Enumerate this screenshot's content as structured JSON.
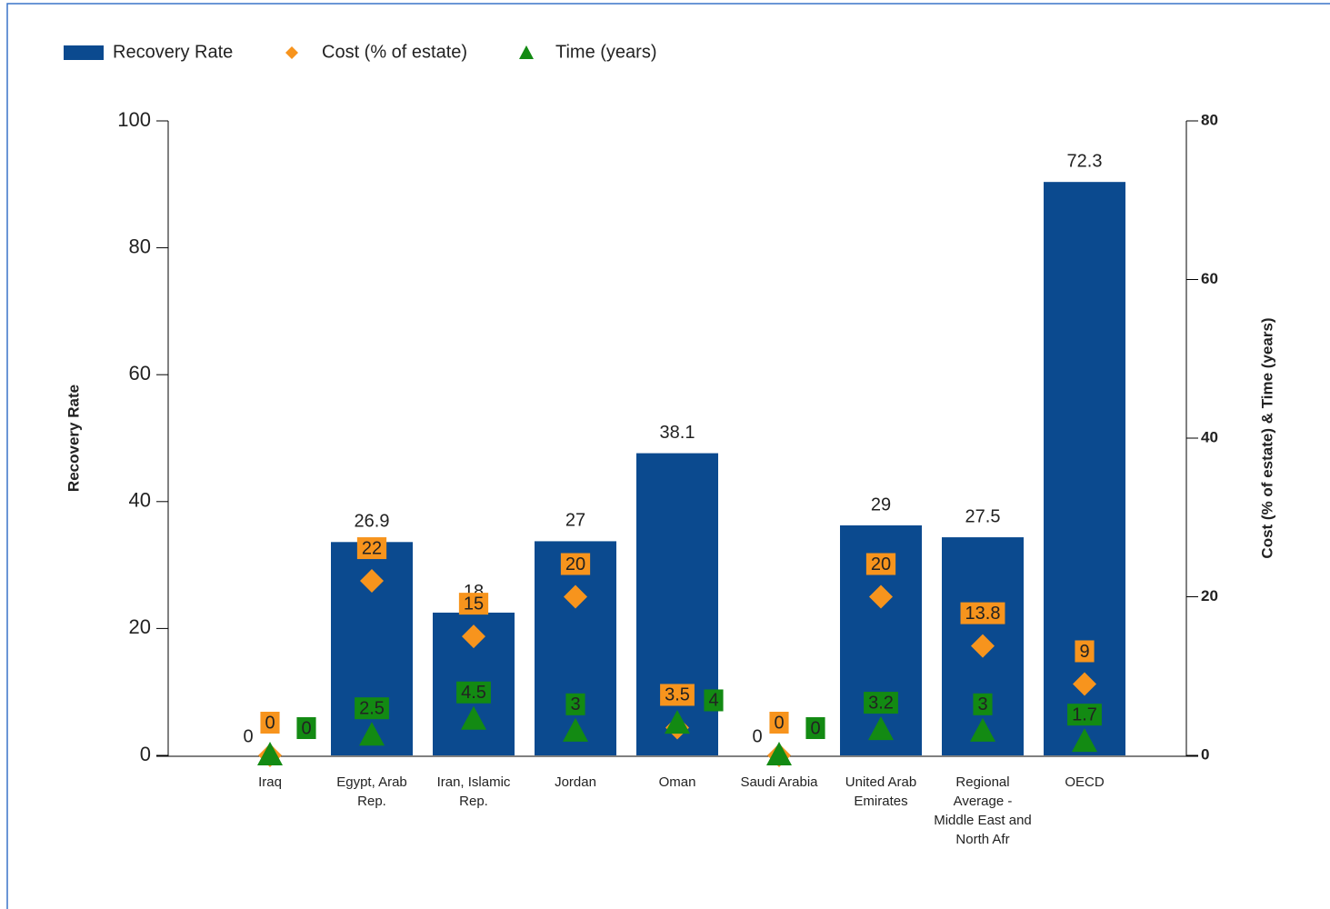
{
  "chart_data": {
    "type": "bar",
    "y_label": "Recovery Rate",
    "y2_label": "Cost (% of estate) & Time (years)",
    "categories": [
      "Iraq",
      "Egypt, Arab Rep.",
      "Iran, Islamic Rep.",
      "Jordan",
      "Oman",
      "Saudi Arabia",
      "United Arab Emirates",
      "Regional Average - Middle East and North Afr",
      "OECD"
    ],
    "series": [
      {
        "name": "Recovery Rate",
        "color": "#0b4a8f",
        "marker": "bar",
        "axis": "y2",
        "values": [
          0,
          26.9,
          18,
          27,
          38.1,
          0,
          29,
          27.5,
          72.3
        ]
      },
      {
        "name": "Cost (% of estate)",
        "color": "#f7941d",
        "marker": "diamond",
        "axis": "y2",
        "values": [
          0,
          22,
          15,
          20,
          3.5,
          0,
          20,
          13.8,
          9
        ]
      },
      {
        "name": "Time (years)",
        "color": "#138a13",
        "marker": "triangle",
        "axis": "y2",
        "values": [
          0,
          2.5,
          4.5,
          3,
          4,
          0,
          3.2,
          3,
          1.7
        ]
      }
    ],
    "ylim": [
      0,
      100
    ],
    "yticks": [
      0,
      20,
      40,
      60,
      80,
      100
    ],
    "y2lim": [
      0,
      80
    ],
    "y2ticks": [
      0,
      20,
      40,
      60,
      80
    ],
    "legend": "top-left"
  }
}
